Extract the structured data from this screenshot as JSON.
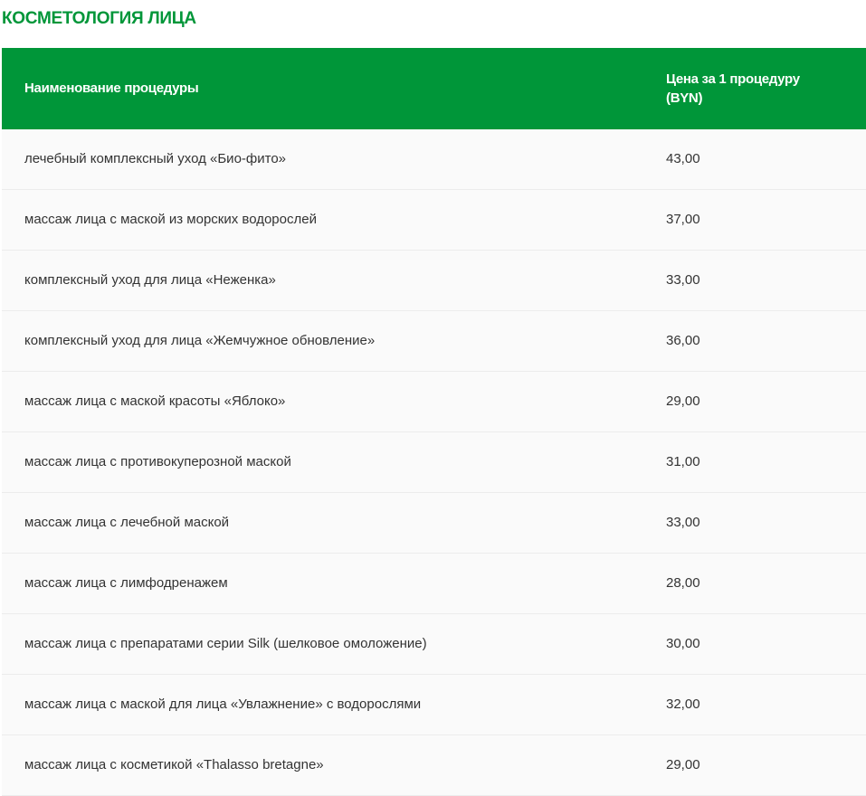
{
  "title": "КОСМЕТОЛОГИЯ ЛИЦА",
  "accent_color": "#009639",
  "table": {
    "headers": [
      "Наименование процедуры",
      "Цена за 1 процедуру (BYN)"
    ],
    "rows": [
      {
        "name": "лечебный комплексный уход «Био-фито»",
        "price": "43,00"
      },
      {
        "name": "массаж лица с маской из морских водорослей",
        "price": "37,00"
      },
      {
        "name": "комплексный уход для лица «Неженка»",
        "price": "33,00"
      },
      {
        "name": "комплексный уход для лица «Жемчужное обновление»",
        "price": "36,00"
      },
      {
        "name": "массаж лица с маской красоты «Яблоко»",
        "price": "29,00"
      },
      {
        "name": "массаж лица с противокуперозной маской",
        "price": "31,00"
      },
      {
        "name": "массаж лица с лечебной маской",
        "price": "33,00"
      },
      {
        "name": "массаж лица с лимфодренажем",
        "price": "28,00"
      },
      {
        "name": "массаж лица с препаратами серии Silk (шелковое омоложение)",
        "price": "30,00"
      },
      {
        "name": "массаж лица с маской для лица «Увлажнение» с водорослями",
        "price": "32,00"
      },
      {
        "name": "массаж лица с косметикой «Thalasso bretagne»",
        "price": "29,00"
      }
    ]
  }
}
